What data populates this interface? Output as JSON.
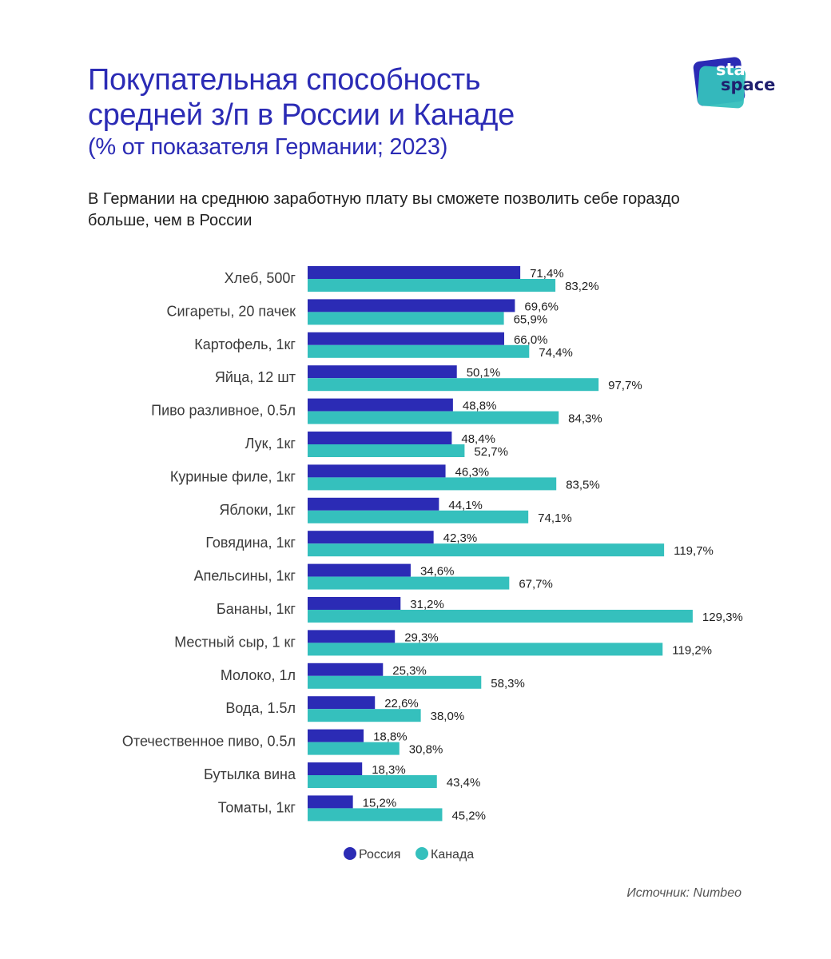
{
  "brand": {
    "line1": "stat",
    "line2": "space"
  },
  "colors": {
    "russia": "#2b2bb5",
    "canada": "#35c0bd",
    "title": "#2b2bb5"
  },
  "chart_data": {
    "type": "bar",
    "orientation": "horizontal",
    "title_lines": [
      "Покупательная способность",
      "средней з/п в России и Канаде",
      "(% от показателя Германии; 2023)"
    ],
    "subtitle": "В Германии на среднюю заработную плату вы сможете позволить себе гораздо больше, чем в России",
    "categories": [
      "Хлеб, 500г",
      "Сигареты, 20 пачек",
      "Картофель, 1кг",
      "Яйца, 12 шт",
      "Пиво разливное, 0.5л",
      "Лук, 1кг",
      "Куриные филе, 1кг",
      "Яблоки, 1кг",
      "Говядина, 1кг",
      "Апельсины, 1кг",
      "Бананы, 1кг",
      "Местный сыр, 1 кг",
      "Молоко, 1л",
      "Вода, 1.5л",
      "Отечественное пиво, 0.5л",
      "Бутылка вина",
      "Томаты, 1кг"
    ],
    "series": [
      {
        "name": "Россия",
        "color": "#2b2bb5",
        "values": [
          71.4,
          69.6,
          66.0,
          50.1,
          48.8,
          48.4,
          46.3,
          44.1,
          42.3,
          34.6,
          31.2,
          29.3,
          25.3,
          22.6,
          18.8,
          18.3,
          15.2
        ],
        "labels": [
          "71,4%",
          "69,6%",
          "66,0%",
          "50,1%",
          "48,8%",
          "48,4%",
          "46,3%",
          "44,1%",
          "42,3%",
          "34,6%",
          "31,2%",
          "29,3%",
          "25,3%",
          "22,6%",
          "18,8%",
          "18,3%",
          "15,2%"
        ]
      },
      {
        "name": "Канада",
        "color": "#35c0bd",
        "values": [
          83.2,
          65.9,
          74.4,
          97.7,
          84.3,
          52.7,
          83.5,
          74.1,
          119.7,
          67.7,
          129.3,
          119.2,
          58.3,
          38.0,
          30.8,
          43.4,
          45.2
        ],
        "labels": [
          "83,2%",
          "65,9%",
          "74,4%",
          "97,7%",
          "84,3%",
          "52,7%",
          "83,5%",
          "74,1%",
          "119,7%",
          "67,7%",
          "129,3%",
          "119,2%",
          "58,3%",
          "38,0%",
          "30,8%",
          "43,4%",
          "45,2%"
        ]
      }
    ],
    "xlim": [
      0,
      140
    ],
    "grid": false,
    "legend_position": "bottom-center"
  },
  "source": "Источник: Numbeo"
}
